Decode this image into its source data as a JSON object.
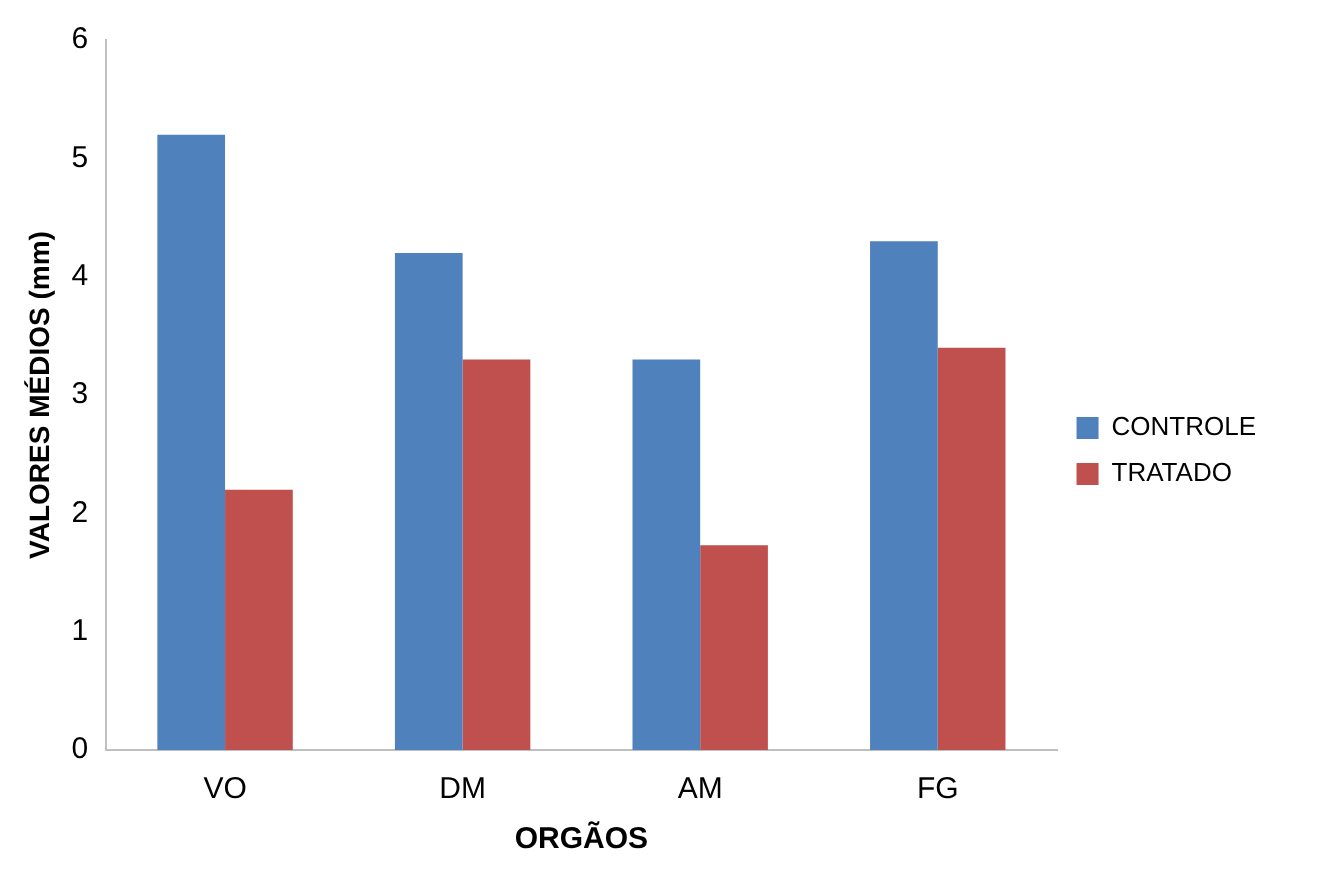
{
  "chart_data": {
    "type": "bar",
    "xlabel": "ORGÃOS",
    "ylabel": "VALORES MÉDIOS (mm)",
    "categories": [
      "VO",
      "DM",
      "AM",
      "FG"
    ],
    "series": [
      {
        "name": "CONTROLE",
        "color": "#4f81bd",
        "values": [
          5.2,
          4.2,
          3.3,
          4.3
        ]
      },
      {
        "name": "TRATADO",
        "color": "#c0504d",
        "values": [
          2.2,
          3.3,
          1.73,
          3.4
        ]
      }
    ],
    "ylim": [
      0,
      6
    ],
    "yticks": [
      0,
      1,
      2,
      3,
      4,
      5,
      6
    ],
    "grid": false,
    "legend": "right"
  }
}
